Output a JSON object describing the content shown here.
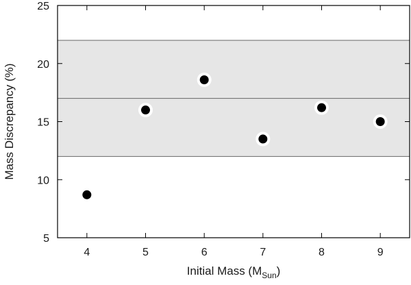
{
  "chart_data": {
    "type": "scatter",
    "title": "",
    "xlabel": "Initial Mass (M",
    "xlabel_sub": "Sun",
    "xlabel_suffix": ")",
    "ylabel": "Mass Discrepancy (%)",
    "xlim": [
      3.5,
      9.5
    ],
    "ylim": [
      5,
      25
    ],
    "xticks": [
      4,
      5,
      6,
      7,
      8,
      9
    ],
    "yticks": [
      5,
      10,
      15,
      20,
      25
    ],
    "grid": false,
    "legend": "none",
    "band": {
      "low": 12,
      "high": 22,
      "mid": 17,
      "color": "#e6e6e6",
      "line_color": "#666666"
    },
    "points": [
      {
        "x": 4,
        "y": 8.7,
        "outlined": false
      },
      {
        "x": 5,
        "y": 16.0,
        "outlined": true
      },
      {
        "x": 6,
        "y": 18.6,
        "outlined": true
      },
      {
        "x": 7,
        "y": 13.5,
        "outlined": true
      },
      {
        "x": 8,
        "y": 16.2,
        "outlined": true
      },
      {
        "x": 9,
        "y": 15.0,
        "outlined": true
      }
    ],
    "marker_color": "#000000"
  }
}
